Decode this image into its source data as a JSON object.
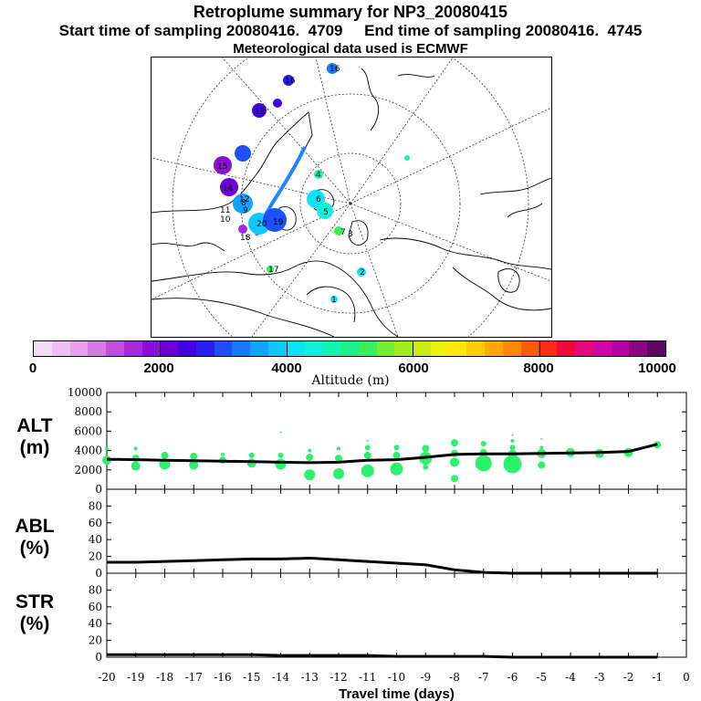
{
  "header": {
    "title": "Retroplume summary for NP3_20080415",
    "sampling": "Start time of sampling 20080416.  4709     End time of sampling 20080416.  4745",
    "met": "Meteorological data used is ECMWF"
  },
  "colorbar": {
    "title": "Altitude (m)",
    "tick_labels": [
      "0",
      "2000",
      "4000",
      "6000",
      "8000",
      "10000"
    ],
    "colors": [
      "#f5dcf5",
      "#eec0f0",
      "#e6a0ee",
      "#d67ae6",
      "#c04fe0",
      "#a62ada",
      "#8a10d6",
      "#6a00d6",
      "#4400e0",
      "#2a1ef0",
      "#1f4ff8",
      "#1a78ff",
      "#12a2ff",
      "#10c6ff",
      "#10e2f6",
      "#10f0da",
      "#14f2b4",
      "#1cf08a",
      "#3cee5c",
      "#70ee38",
      "#a0ec20",
      "#caec14",
      "#eef010",
      "#ffe808",
      "#ffcc06",
      "#ffaa06",
      "#ff8806",
      "#ff5a08",
      "#ff2a14",
      "#f00a3c",
      "#e6087a",
      "#d006a6",
      "#b404a8",
      "#8a0486",
      "#5e0464"
    ]
  },
  "panels": {
    "alt": {
      "label_line1": "ALT",
      "label_line2": "(m)"
    },
    "abl": {
      "label_line1": "ABL",
      "label_line2": "(%)"
    },
    "str": {
      "label_line1": "STR",
      "label_line2": "(%)"
    }
  },
  "map": {
    "point_labels": [
      "16",
      "16",
      "13",
      "15",
      "14",
      "12",
      "11",
      "10",
      "9",
      "8",
      "7",
      "6",
      "5",
      "4",
      "3",
      "2",
      "1",
      "17",
      "18",
      "19",
      "20"
    ]
  },
  "chart_data": [
    {
      "type": "line",
      "panel": "ALT",
      "ylabel": "ALT (m)",
      "ylim": [
        0,
        10000
      ],
      "yticks": [
        0,
        2000,
        4000,
        6000,
        8000,
        10000
      ],
      "x": [
        -20,
        -19,
        -18,
        -17,
        -16,
        -15,
        -14,
        -13,
        -12,
        -11,
        -10,
        -9,
        -8,
        -7,
        -6,
        -5,
        -4,
        -3,
        -2,
        -1
      ],
      "mean_altitude": [
        3100,
        3050,
        3000,
        2950,
        2900,
        2850,
        2800,
        2750,
        2800,
        3000,
        3050,
        3300,
        3600,
        3650,
        3650,
        3700,
        3750,
        3800,
        3900,
        4650
      ],
      "spread_points": [
        {
          "x": -20,
          "y": 3000,
          "s": 5
        },
        {
          "x": -20,
          "y": 4200,
          "s": 2
        },
        {
          "x": -19,
          "y": 2400,
          "s": 5
        },
        {
          "x": -19,
          "y": 3200,
          "s": 4
        },
        {
          "x": -19,
          "y": 4200,
          "s": 2
        },
        {
          "x": -18,
          "y": 2600,
          "s": 6
        },
        {
          "x": -18,
          "y": 3500,
          "s": 4
        },
        {
          "x": -17,
          "y": 2500,
          "s": 5
        },
        {
          "x": -17,
          "y": 3400,
          "s": 4
        },
        {
          "x": -16,
          "y": 3000,
          "s": 4
        },
        {
          "x": -16,
          "y": 3600,
          "s": 2
        },
        {
          "x": -15,
          "y": 2700,
          "s": 5
        },
        {
          "x": -15,
          "y": 3500,
          "s": 3
        },
        {
          "x": -14,
          "y": 2600,
          "s": 6
        },
        {
          "x": -14,
          "y": 3500,
          "s": 3
        },
        {
          "x": -14,
          "y": 5900,
          "s": 1
        },
        {
          "x": -13,
          "y": 1500,
          "s": 6
        },
        {
          "x": -13,
          "y": 3300,
          "s": 4
        },
        {
          "x": -13,
          "y": 4000,
          "s": 2
        },
        {
          "x": -12,
          "y": 1600,
          "s": 6
        },
        {
          "x": -12,
          "y": 3200,
          "s": 4
        },
        {
          "x": -12,
          "y": 4200,
          "s": 2
        },
        {
          "x": -11,
          "y": 1900,
          "s": 7
        },
        {
          "x": -11,
          "y": 3500,
          "s": 4
        },
        {
          "x": -11,
          "y": 4300,
          "s": 3
        },
        {
          "x": -11,
          "y": 5000,
          "s": 1
        },
        {
          "x": -10,
          "y": 2100,
          "s": 7
        },
        {
          "x": -10,
          "y": 3500,
          "s": 4
        },
        {
          "x": -10,
          "y": 4300,
          "s": 3
        },
        {
          "x": -9,
          "y": 3200,
          "s": 7
        },
        {
          "x": -9,
          "y": 4200,
          "s": 4
        },
        {
          "x": -9,
          "y": 2300,
          "s": 3
        },
        {
          "x": -8,
          "y": 1100,
          "s": 4
        },
        {
          "x": -8,
          "y": 2800,
          "s": 5
        },
        {
          "x": -8,
          "y": 3700,
          "s": 4
        },
        {
          "x": -8,
          "y": 4800,
          "s": 4
        },
        {
          "x": -7,
          "y": 2700,
          "s": 9
        },
        {
          "x": -7,
          "y": 3800,
          "s": 4
        },
        {
          "x": -7,
          "y": 4700,
          "s": 3
        },
        {
          "x": -6,
          "y": 2600,
          "s": 10
        },
        {
          "x": -6,
          "y": 3600,
          "s": 5
        },
        {
          "x": -6,
          "y": 4300,
          "s": 3
        },
        {
          "x": -6,
          "y": 5000,
          "s": 2
        },
        {
          "x": -6,
          "y": 5600,
          "s": 1
        },
        {
          "x": -5,
          "y": 2500,
          "s": 4
        },
        {
          "x": -5,
          "y": 3700,
          "s": 5
        },
        {
          "x": -5,
          "y": 4300,
          "s": 2
        },
        {
          "x": -5,
          "y": 5200,
          "s": 1
        },
        {
          "x": -4,
          "y": 3800,
          "s": 5
        },
        {
          "x": -3,
          "y": 3700,
          "s": 5
        },
        {
          "x": -2,
          "y": 3800,
          "s": 5
        },
        {
          "x": -2,
          "y": 4000,
          "s": 2
        },
        {
          "x": -1,
          "y": 4600,
          "s": 4
        }
      ]
    },
    {
      "type": "line",
      "panel": "ABL",
      "ylabel": "ABL (%)",
      "ylim": [
        0,
        100
      ],
      "yticks": [
        0,
        20,
        40,
        60,
        80
      ],
      "x": [
        -20,
        -19,
        -18,
        -17,
        -16,
        -15,
        -14,
        -13,
        -12,
        -11,
        -10,
        -9,
        -8,
        -7,
        -6,
        -5,
        -4,
        -3,
        -2,
        -1
      ],
      "values": [
        13,
        13,
        14,
        15,
        16,
        17,
        17,
        18,
        16,
        14,
        12,
        10,
        4,
        1,
        0,
        0,
        0,
        0,
        0,
        0
      ]
    },
    {
      "type": "line",
      "panel": "STR",
      "ylabel": "STR (%)",
      "xlabel": "Travel time (days)",
      "ylim": [
        0,
        100
      ],
      "yticks": [
        0,
        20,
        40,
        60,
        80
      ],
      "xlim": [
        -20,
        0
      ],
      "xticks": [
        -20,
        -19,
        -18,
        -17,
        -16,
        -15,
        -14,
        -13,
        -12,
        -11,
        -10,
        -9,
        -8,
        -7,
        -6,
        -5,
        -4,
        -3,
        -2,
        -1,
        0
      ],
      "x": [
        -20,
        -19,
        -18,
        -17,
        -16,
        -15,
        -14,
        -13,
        -12,
        -11,
        -10,
        -9,
        -8,
        -7,
        -6,
        -5,
        -4,
        -3,
        -2,
        -1
      ],
      "values": [
        3,
        3,
        3,
        3,
        3,
        3,
        2,
        2,
        2,
        2,
        1,
        1,
        1,
        1,
        0,
        0,
        0,
        0,
        0,
        0
      ]
    }
  ]
}
